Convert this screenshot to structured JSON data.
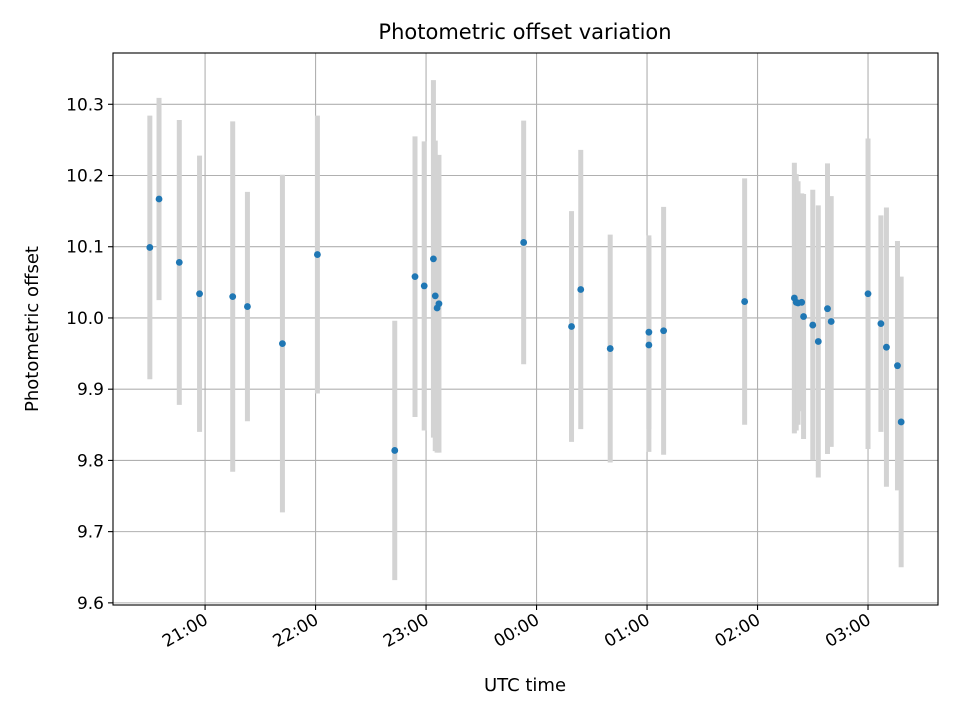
{
  "chart_data": {
    "type": "scatter",
    "title": "Photometric offset variation",
    "xlabel": "UTC time",
    "ylabel": "Photometric offset",
    "x_axis_type": "time",
    "x_range": [
      "20:10",
      "03:38"
    ],
    "x_ticks": [
      "21:00",
      "22:00",
      "23:00",
      "00:00",
      "01:00",
      "02:00",
      "03:00"
    ],
    "ylim": [
      9.597,
      10.372
    ],
    "y_ticks": [
      "9.6",
      "9.7",
      "9.8",
      "9.9",
      "10.0",
      "10.1",
      "10.2",
      "10.3"
    ],
    "grid": true,
    "colors": {
      "point": "#1f77b4",
      "errorbar": "#d3d3d3",
      "grid": "#b0b0b0"
    },
    "series": [
      {
        "points": [
          {
            "x": "20:30",
            "y": 10.099,
            "err": 0.185
          },
          {
            "x": "20:35",
            "y": 10.167,
            "err": 0.142
          },
          {
            "x": "20:46",
            "y": 10.078,
            "err": 0.2
          },
          {
            "x": "20:57",
            "y": 10.034,
            "err": 0.194
          },
          {
            "x": "21:15",
            "y": 10.03,
            "err": 0.246
          },
          {
            "x": "21:23",
            "y": 10.016,
            "err": 0.161
          },
          {
            "x": "21:42",
            "y": 9.964,
            "err": 0.237
          },
          {
            "x": "22:01",
            "y": 10.089,
            "err": 0.195
          },
          {
            "x": "22:43",
            "y": 9.814,
            "err": 0.182
          },
          {
            "x": "22:54",
            "y": 10.058,
            "err": 0.197
          },
          {
            "x": "22:59",
            "y": 10.045,
            "err": 0.203
          },
          {
            "x": "23:04",
            "y": 10.083,
            "err": 0.251
          },
          {
            "x": "23:05",
            "y": 10.031,
            "err": 0.218
          },
          {
            "x": "23:06",
            "y": 10.014,
            "err": 0.203
          },
          {
            "x": "23:07",
            "y": 10.02,
            "err": 0.209
          },
          {
            "x": "23:53",
            "y": 10.106,
            "err": 0.171
          },
          {
            "x": "00:19",
            "y": 9.988,
            "err": 0.162
          },
          {
            "x": "00:24",
            "y": 10.04,
            "err": 0.196
          },
          {
            "x": "00:40",
            "y": 9.957,
            "err": 0.16
          },
          {
            "x": "01:01",
            "y": 9.98,
            "err": 0.136
          },
          {
            "x": "01:01",
            "y": 9.962,
            "err": 0.15
          },
          {
            "x": "01:09",
            "y": 9.982,
            "err": 0.174
          },
          {
            "x": "01:53",
            "y": 10.023,
            "err": 0.173
          },
          {
            "x": "02:20",
            "y": 10.028,
            "err": 0.19
          },
          {
            "x": "02:21",
            "y": 10.022,
            "err": 0.18
          },
          {
            "x": "02:22",
            "y": 10.021,
            "err": 0.171
          },
          {
            "x": "02:24",
            "y": 10.022,
            "err": 0.153
          },
          {
            "x": "02:25",
            "y": 10.002,
            "err": 0.172
          },
          {
            "x": "02:30",
            "y": 9.99,
            "err": 0.19
          },
          {
            "x": "02:33",
            "y": 9.967,
            "err": 0.191
          },
          {
            "x": "02:38",
            "y": 10.013,
            "err": 0.204
          },
          {
            "x": "02:40",
            "y": 9.995,
            "err": 0.176
          },
          {
            "x": "03:00",
            "y": 10.034,
            "err": 0.218
          },
          {
            "x": "03:07",
            "y": 9.992,
            "err": 0.152
          },
          {
            "x": "03:10",
            "y": 9.959,
            "err": 0.196
          },
          {
            "x": "03:16",
            "y": 9.933,
            "err": 0.175
          },
          {
            "x": "03:18",
            "y": 9.854,
            "err": 0.204
          }
        ]
      }
    ]
  }
}
